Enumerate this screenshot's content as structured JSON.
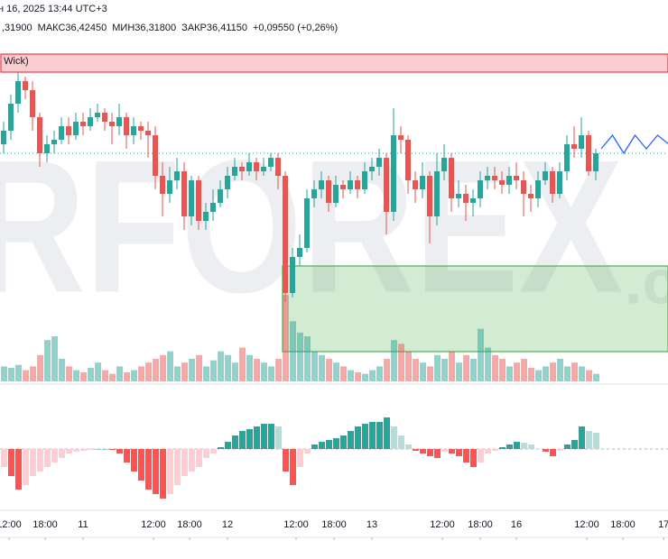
{
  "chart_data": {
    "type": "candlestick",
    "title": "н 16, 2025 13:44 UTC+3",
    "info": [
      ",31900",
      "МАКС36,42450",
      "МИН36,31800",
      "ЗАКР36,41150",
      "+0,09550 (+0,26%)"
    ],
    "indicator_label": ", Wick)",
    "watermark": "RFOREX",
    "watermark_suffix": ".c",
    "ylim": [
      35.8,
      36.56
    ],
    "open": [
      36.34,
      36.37,
      36.43,
      36.48,
      36.46,
      36.4,
      36.32,
      36.34,
      36.35,
      36.38,
      36.36,
      36.39,
      36.38,
      36.4,
      36.41,
      36.39,
      36.38,
      36.4,
      36.36,
      36.38,
      36.37,
      36.36,
      36.27,
      36.23,
      36.26,
      36.28,
      36.18,
      36.26,
      36.17,
      36.19,
      36.21,
      36.24,
      36.27,
      36.29,
      36.28,
      36.3,
      36.28,
      36.29,
      36.31,
      36.27,
      36.01,
      36.09,
      36.11,
      36.22,
      36.24,
      36.26,
      36.21,
      36.25,
      36.24,
      36.26,
      36.24,
      36.28,
      36.29,
      36.31,
      36.19,
      36.36,
      36.35,
      36.26,
      36.24,
      36.27,
      36.18,
      36.28,
      36.31,
      36.22,
      36.23,
      36.21,
      36.22,
      36.26,
      36.27,
      36.26,
      36.25,
      36.27,
      36.26,
      36.23,
      36.22,
      36.26,
      36.28,
      36.23,
      36.28,
      36.34,
      36.33,
      36.36,
      36.28
    ],
    "high": [
      36.39,
      36.45,
      36.5,
      36.49,
      36.48,
      36.41,
      36.36,
      36.37,
      36.4,
      36.4,
      36.41,
      36.41,
      36.42,
      36.43,
      36.42,
      36.41,
      36.43,
      36.41,
      36.4,
      36.39,
      36.39,
      36.38,
      36.3,
      36.29,
      36.31,
      36.3,
      36.27,
      36.27,
      36.21,
      36.24,
      36.26,
      36.29,
      36.31,
      36.3,
      36.32,
      36.31,
      36.31,
      36.32,
      36.32,
      36.28,
      36.11,
      36.14,
      36.24,
      36.26,
      36.28,
      36.27,
      36.27,
      36.26,
      36.28,
      36.27,
      36.3,
      36.31,
      36.33,
      36.32,
      36.42,
      36.38,
      36.36,
      36.28,
      36.3,
      36.28,
      36.32,
      36.34,
      36.32,
      36.26,
      36.25,
      36.24,
      36.28,
      36.29,
      36.29,
      36.28,
      36.29,
      36.3,
      36.28,
      36.25,
      36.28,
      36.3,
      36.29,
      36.3,
      36.36,
      36.38,
      36.4,
      36.37,
      36.33
    ],
    "low": [
      36.32,
      36.35,
      36.41,
      36.44,
      36.37,
      36.29,
      36.3,
      36.32,
      36.34,
      36.34,
      36.35,
      36.36,
      36.37,
      36.39,
      36.37,
      36.34,
      36.36,
      36.33,
      36.34,
      36.35,
      36.31,
      36.24,
      36.18,
      36.21,
      36.24,
      36.15,
      36.16,
      36.15,
      36.15,
      36.17,
      36.2,
      36.22,
      36.26,
      36.26,
      36.27,
      36.26,
      36.27,
      36.28,
      36.24,
      35.99,
      36.0,
      36.07,
      36.1,
      36.2,
      36.22,
      36.19,
      36.2,
      36.22,
      36.23,
      36.22,
      36.23,
      36.26,
      36.27,
      36.14,
      36.17,
      36.32,
      36.23,
      36.21,
      36.22,
      36.12,
      36.16,
      36.26,
      36.19,
      36.2,
      36.17,
      36.18,
      36.2,
      36.24,
      36.24,
      36.23,
      36.23,
      36.24,
      36.18,
      36.19,
      36.2,
      36.25,
      36.21,
      36.22,
      36.26,
      36.31,
      36.31,
      36.27,
      36.26
    ],
    "close": [
      36.37,
      36.43,
      36.48,
      36.46,
      36.4,
      36.32,
      36.34,
      36.35,
      36.38,
      36.36,
      36.39,
      36.38,
      36.4,
      36.41,
      36.39,
      36.38,
      36.4,
      36.36,
      36.38,
      36.37,
      36.36,
      36.27,
      36.23,
      36.26,
      36.28,
      36.18,
      36.26,
      36.17,
      36.19,
      36.21,
      36.24,
      36.27,
      36.29,
      36.28,
      36.3,
      36.28,
      36.29,
      36.31,
      36.27,
      36.01,
      36.09,
      36.11,
      36.22,
      36.24,
      36.26,
      36.21,
      36.25,
      36.24,
      36.26,
      36.24,
      36.28,
      36.29,
      36.31,
      36.19,
      36.36,
      36.35,
      36.26,
      36.24,
      36.27,
      36.18,
      36.28,
      36.31,
      36.22,
      36.23,
      36.21,
      36.22,
      36.26,
      36.27,
      36.26,
      36.25,
      36.27,
      36.26,
      36.23,
      36.22,
      36.26,
      36.28,
      36.23,
      36.28,
      36.34,
      36.33,
      36.36,
      36.28,
      36.32
    ],
    "up_color": "#26a69a",
    "down_color": "#ef5350",
    "volume": [
      20,
      18,
      22,
      15,
      20,
      35,
      55,
      60,
      30,
      20,
      15,
      12,
      18,
      25,
      15,
      10,
      20,
      12,
      15,
      20,
      25,
      30,
      35,
      40,
      20,
      25,
      30,
      35,
      20,
      28,
      40,
      35,
      25,
      45,
      35,
      30,
      25,
      20,
      30,
      115,
      80,
      65,
      60,
      40,
      35,
      30,
      25,
      20,
      15,
      12,
      10,
      15,
      20,
      30,
      55,
      50,
      40,
      30,
      25,
      20,
      35,
      30,
      40,
      25,
      35,
      30,
      70,
      45,
      35,
      30,
      20,
      25,
      30,
      18,
      15,
      20,
      25,
      30,
      20,
      25,
      20,
      15,
      10
    ],
    "volume_lim": [
      0,
      120
    ],
    "histogram": [
      -20,
      -30,
      -45,
      -40,
      -30,
      -25,
      -20,
      -15,
      -10,
      -5,
      -3,
      -2,
      -1,
      0,
      0,
      -1,
      -5,
      -15,
      -25,
      -35,
      -45,
      -50,
      -55,
      -50,
      -40,
      -30,
      -25,
      -20,
      -10,
      -5,
      2,
      8,
      15,
      20,
      22,
      25,
      28,
      28,
      25,
      -25,
      -40,
      -20,
      -5,
      5,
      8,
      10,
      12,
      15,
      20,
      25,
      28,
      30,
      30,
      35,
      25,
      15,
      5,
      -2,
      -5,
      -8,
      -10,
      -3,
      -5,
      -8,
      -15,
      -20,
      -15,
      -5,
      -2,
      2,
      5,
      8,
      7,
      5,
      0,
      -3,
      -8,
      -2,
      5,
      10,
      25,
      20,
      18
    ],
    "histogram_lim": [
      -60,
      40
    ],
    "histogram_colors": [
      "#26a69a",
      "#b2dfdb",
      "#ff5252",
      "#ffcdd2"
    ],
    "projection": [
      36.33,
      36.36,
      36.32,
      36.36,
      36.33,
      36.36,
      36.34
    ],
    "projection_color": "#2962ff",
    "zones": [
      {
        "color": "#f23645",
        "range": [
          36.5,
          36.54
        ],
        "start_candle": 0
      },
      {
        "color": "#4caf50",
        "range": [
          35.88,
          36.07
        ],
        "start_candle": 39
      }
    ],
    "xticks": [
      {
        "value": 0.75,
        "label": "12:00"
      },
      {
        "value": 5.75,
        "label": "18:00"
      },
      {
        "value": 11,
        "label": "11"
      },
      {
        "value": 20.75,
        "label": "12:00"
      },
      {
        "value": 25.75,
        "label": "18:00"
      },
      {
        "value": 31,
        "label": "12"
      },
      {
        "value": 40.5,
        "label": "12:00"
      },
      {
        "value": 45.75,
        "label": "18:00"
      },
      {
        "value": 51,
        "label": "13"
      },
      {
        "value": 60.75,
        "label": "12:00"
      },
      {
        "value": 66,
        "label": "18:00"
      },
      {
        "value": 71,
        "label": "16"
      },
      {
        "value": 80.75,
        "label": "12:00"
      },
      {
        "value": 85.75,
        "label": "18:00"
      },
      {
        "value": 91.4,
        "label": "17"
      }
    ]
  }
}
